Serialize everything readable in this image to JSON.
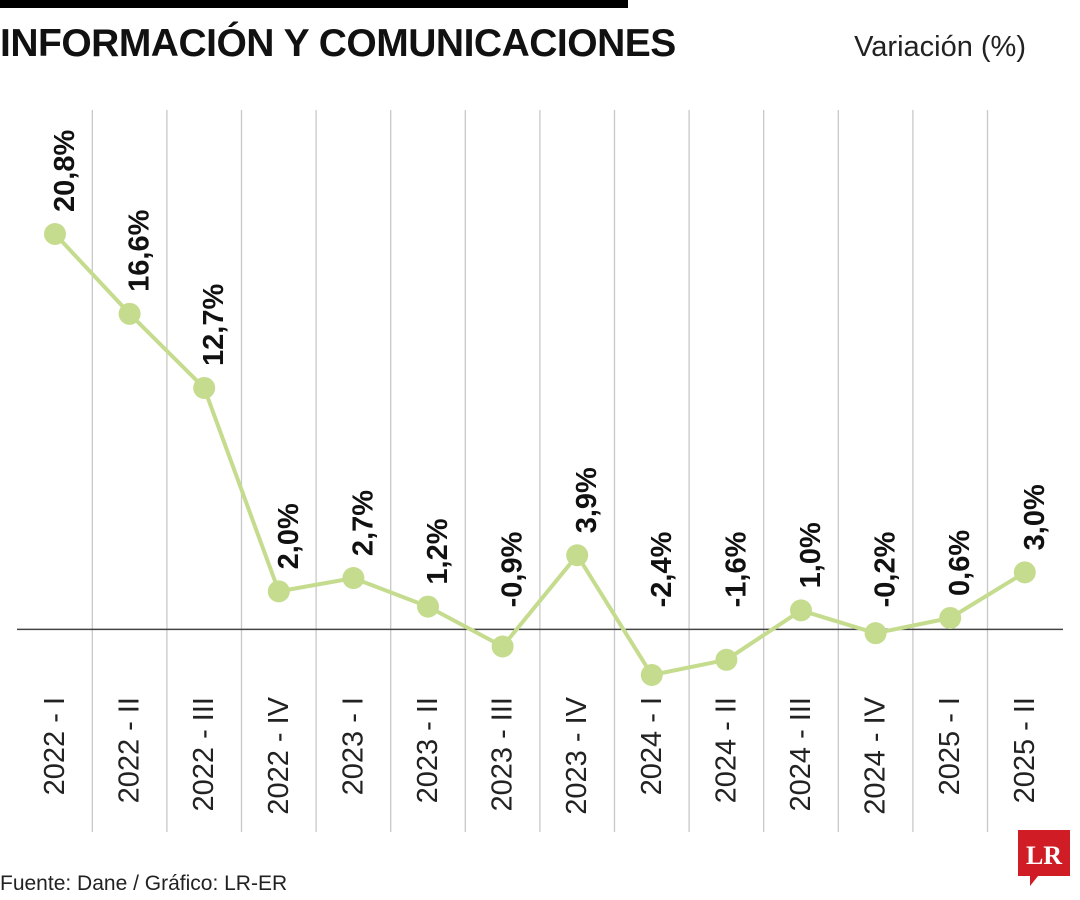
{
  "header": {
    "title": "INFORMACIÓN Y COMUNICACIONES",
    "unit_label": "Variación (%)"
  },
  "footer": {
    "source": "Fuente: Dane / Gráfico: LR-ER",
    "logo_text": "LR"
  },
  "colors": {
    "line": "#c5dc8e",
    "marker": "#c5dc8e",
    "gridline": "#c8c8c8",
    "zero_line": "#444444",
    "logo": "#d01c24"
  },
  "chart_data": {
    "type": "line",
    "title": "INFORMACIÓN Y COMUNICACIONES",
    "ylabel": "Variación (%)",
    "xlabel": "",
    "categories": [
      "2022 - I",
      "2022 - II",
      "2022 - III",
      "2022 - IV",
      "2023 - I",
      "2023 - II",
      "2023 - III",
      "2023 - IV",
      "2024 - I",
      "2024 - II",
      "2024 - III",
      "2024 - IV",
      "2025 - I",
      "2025 - II"
    ],
    "series": [
      {
        "values": [
          20.8,
          16.6,
          12.7,
          2.0,
          2.7,
          1.2,
          -0.9,
          3.9,
          -2.4,
          -1.6,
          1.0,
          -0.2,
          0.6,
          3.0
        ],
        "data_labels": [
          "20,8%",
          "16,6%",
          "12,7%",
          "2,0%",
          "2,7%",
          "1,2%",
          "-0,9%",
          "3,9%",
          "-2,4%",
          "-1,6%",
          "1,0%",
          "-0,2%",
          "0,6%",
          "3,0%"
        ]
      }
    ],
    "ylim": [
      -2.4,
      20.8
    ],
    "grid": "vertical",
    "legend": "none"
  }
}
